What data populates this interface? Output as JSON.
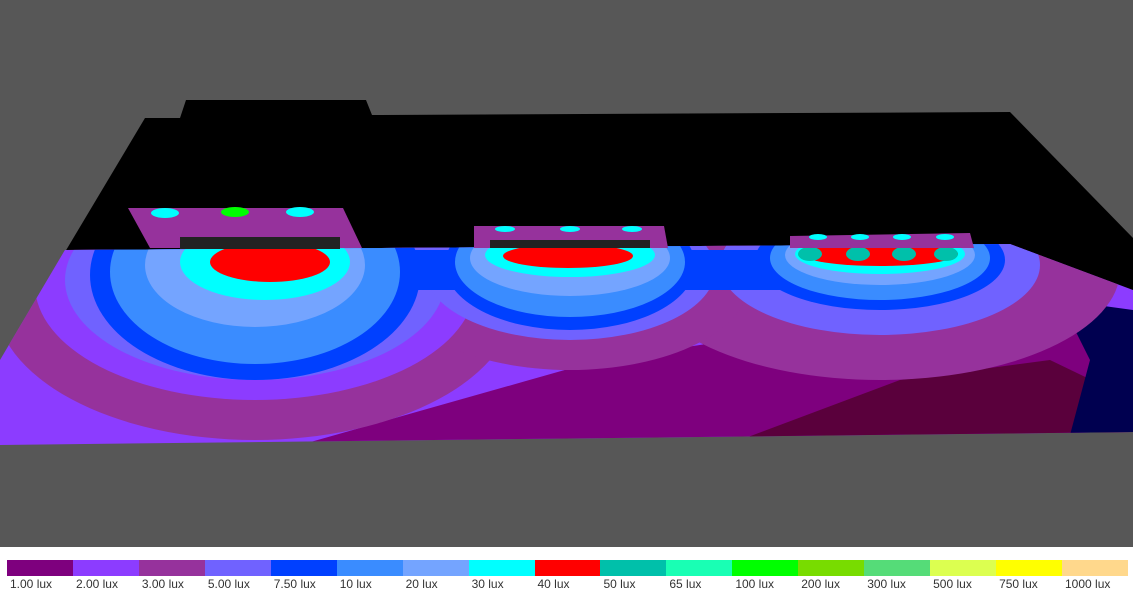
{
  "background_color": "#575757",
  "legend": [
    {
      "label": "1.00 lux",
      "color": "#7e007e"
    },
    {
      "label": "2.00 lux",
      "color": "#8c3cff"
    },
    {
      "label": "3.00 lux",
      "color": "#96329c"
    },
    {
      "label": "5.00 lux",
      "color": "#7062ff"
    },
    {
      "label": "7.50 lux",
      "color": "#0040ff"
    },
    {
      "label": "10 lux",
      "color": "#3a8cff"
    },
    {
      "label": "20 lux",
      "color": "#74a4ff"
    },
    {
      "label": "30 lux",
      "color": "#00ffff"
    },
    {
      "label": "40 lux",
      "color": "#ff0000"
    },
    {
      "label": "50 lux",
      "color": "#00c0aa"
    },
    {
      "label": "65 lux",
      "color": "#19ffb4"
    },
    {
      "label": "100 lux",
      "color": "#00ff00"
    },
    {
      "label": "200 lux",
      "color": "#78dc00"
    },
    {
      "label": "300 lux",
      "color": "#55dc78"
    },
    {
      "label": "500 lux",
      "color": "#dcff50"
    },
    {
      "label": "750 lux",
      "color": "#ffff00"
    },
    {
      "label": "1000 lux",
      "color": "#ffd88c"
    }
  ]
}
